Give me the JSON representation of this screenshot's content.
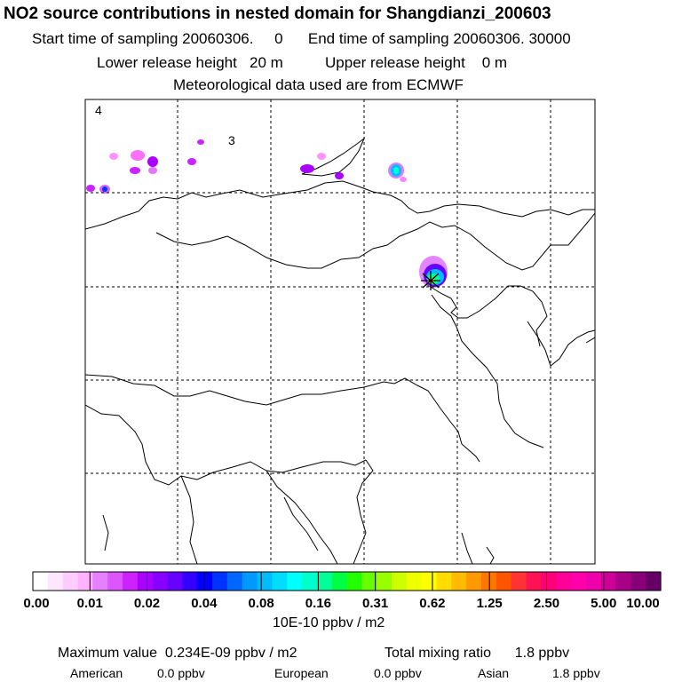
{
  "header": {
    "title": "NO2 source contributions in nested domain for Shangdianzi_200603",
    "sampling_line": "Start time of sampling 20060306.     0      End time of sampling 20060306. 30000",
    "release_line": "Lower release height   20 m          Upper release height    0 m",
    "met_line": "Meteorological data used are from ECMWF"
  },
  "map": {
    "grid_labels": [
      "4",
      "3"
    ],
    "receptor": "Shangdianzi",
    "plume_colors": [
      "#ff33ff",
      "#aa22ff",
      "#3355ff",
      "#00e6ff",
      "#33ff33",
      "#ffff00"
    ]
  },
  "legend": {
    "ticks": [
      "0.00",
      "0.01",
      "0.02",
      "0.04",
      "0.08",
      "0.16",
      "0.31",
      "0.62",
      "1.25",
      "2.50",
      "5.00",
      "10.00"
    ],
    "colors": [
      "#ffffff",
      "#ffe6ff",
      "#ffccff",
      "#ffb3ff",
      "#e680ff",
      "#dd55ff",
      "#cc22ff",
      "#aa00ff",
      "#8800ff",
      "#6600ff",
      "#3300ff",
      "#0000ff",
      "#0033ff",
      "#0066ff",
      "#0099ff",
      "#00bbff",
      "#00ddff",
      "#00ffff",
      "#00ffcc",
      "#00ff99",
      "#00ff44",
      "#22ff00",
      "#66ff00",
      "#99ff00",
      "#ccff00",
      "#eeff00",
      "#ffff00",
      "#ffdd00",
      "#ffbb00",
      "#ff9900",
      "#ff7700",
      "#ff5500",
      "#ff3333",
      "#ff1155",
      "#ff0077",
      "#ff0099",
      "#ff00aa",
      "#ee00aa",
      "#cc0099",
      "#aa0088",
      "#880077",
      "#660066"
    ],
    "unit": "10E-10 ppbv / m2"
  },
  "footer": {
    "max_value": "Maximum value  0.234E-09 ppbv / m2",
    "total": "Total mixing ratio      1.8 ppbv",
    "american_label": "American",
    "american_value": "0.0 ppbv",
    "european_label": "European",
    "european_value": "0.0 ppbv",
    "asian_label": "Asian",
    "asian_value": "1.8 ppbv"
  }
}
